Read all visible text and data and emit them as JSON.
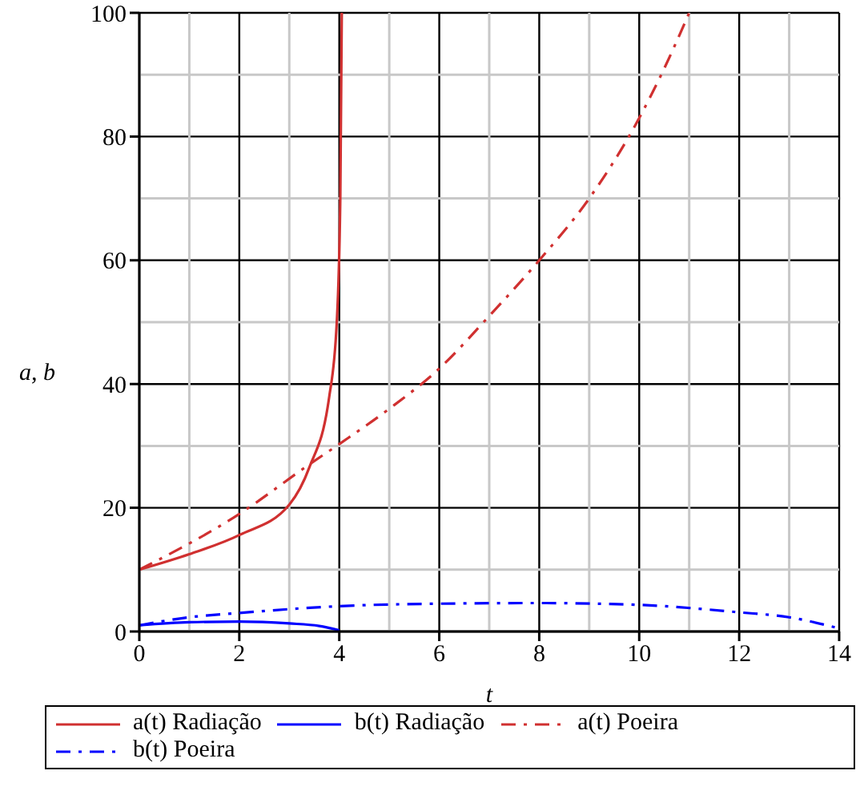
{
  "chart_data": {
    "type": "line",
    "xlabel": "t",
    "ylabel": "a, b",
    "xlim": [
      0,
      14
    ],
    "ylim": [
      0,
      100
    ],
    "xticks": [
      0,
      2,
      4,
      6,
      8,
      10,
      12,
      14
    ],
    "yticks": [
      0,
      20,
      40,
      60,
      80,
      100
    ],
    "grid": true,
    "legend": "bottom",
    "marker": "none",
    "series": [
      {
        "name": "a(t) Radiação",
        "color": "#d03030",
        "line_style": "solid",
        "x": [
          0,
          1,
          2,
          3,
          3.4,
          3.8,
          3.95,
          4.02,
          4.05
        ],
        "values": [
          10,
          12.5,
          15.6,
          20.5,
          26.5,
          38,
          50,
          70,
          100
        ]
      },
      {
        "name": "b(t) Radiação",
        "color": "#0000ff",
        "line_style": "solid",
        "x": [
          0,
          1,
          2,
          3,
          3.6,
          4
        ],
        "values": [
          1,
          1.5,
          1.6,
          1.3,
          0.9,
          0.2
        ]
      },
      {
        "name": "a(t) Poeira",
        "color": "#d03030",
        "line_style": "dashed",
        "x": [
          0,
          2,
          3.4,
          4,
          5,
          6,
          7,
          8,
          9,
          10,
          10.5,
          11
        ],
        "values": [
          10,
          19,
          27,
          30.3,
          36,
          42.5,
          51,
          60,
          70,
          83,
          91,
          100
        ]
      },
      {
        "name": "b(t) Poeira",
        "color": "#0000ff",
        "line_style": "dashed",
        "x": [
          0,
          1,
          2,
          4,
          6,
          8,
          10,
          12,
          13,
          14
        ],
        "values": [
          1,
          2.3,
          3,
          4.1,
          4.5,
          4.6,
          4.3,
          3.1,
          2.3,
          0.5
        ]
      }
    ]
  }
}
